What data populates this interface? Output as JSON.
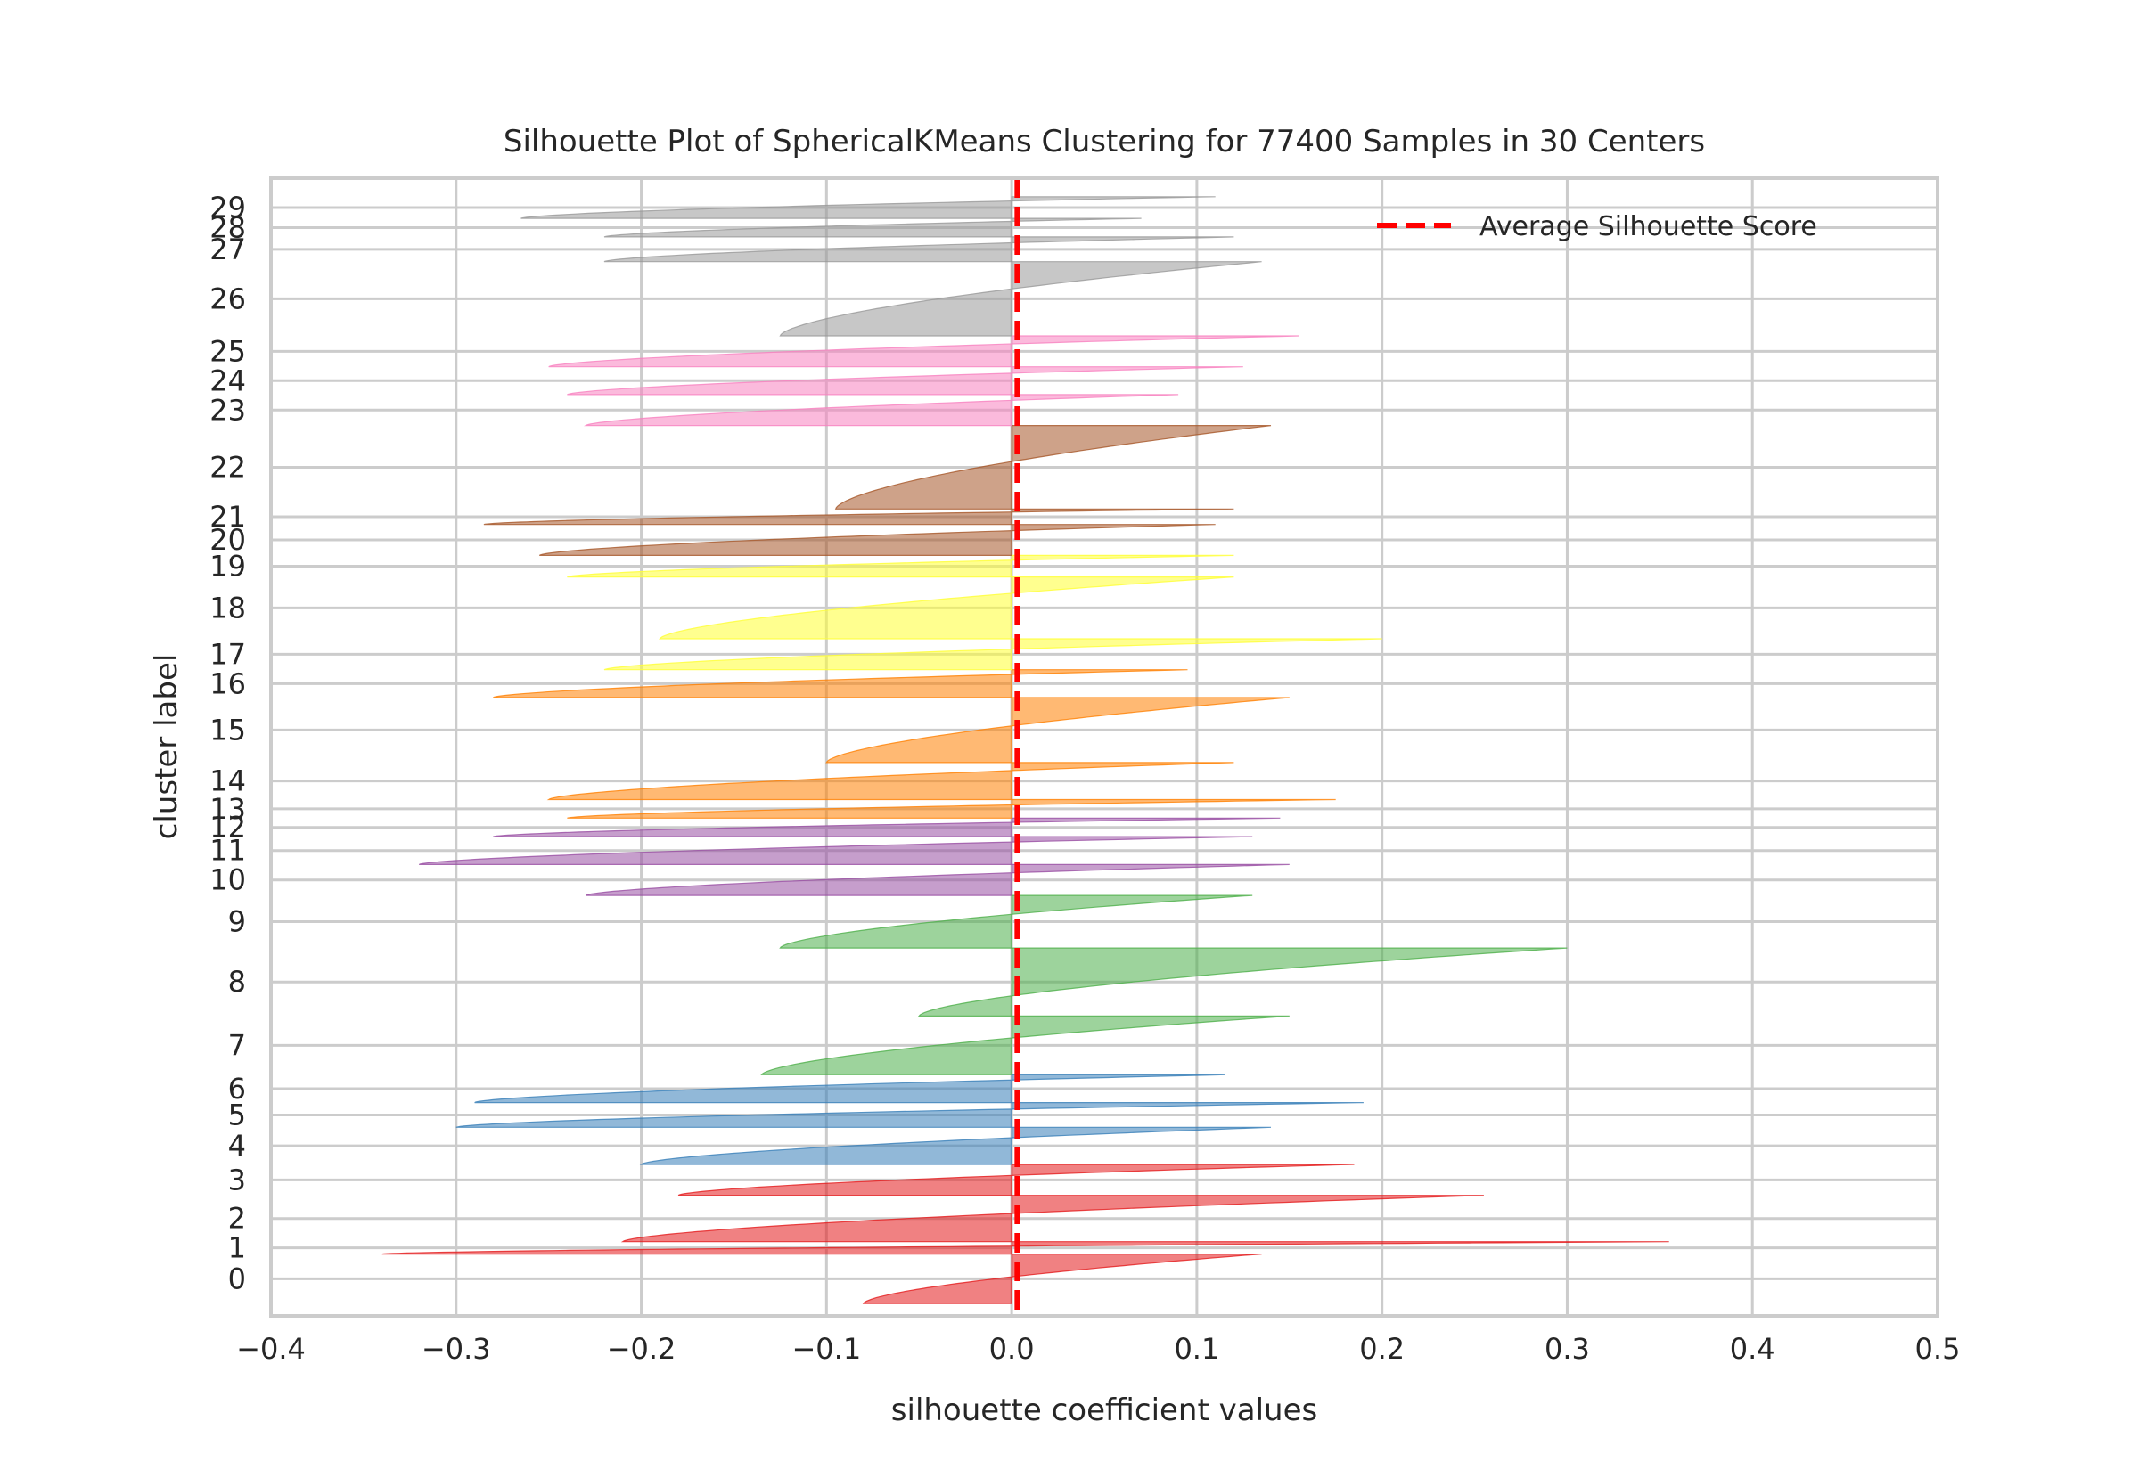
{
  "chart_data": {
    "type": "silhouette",
    "title": "Silhouette Plot of SphericalKMeans Clustering for 77400 Samples in 30 Centers",
    "xlabel": "silhouette coefficient values",
    "ylabel": "cluster label",
    "xlim": [
      -0.4,
      0.5
    ],
    "xticks": [
      -0.4,
      -0.3,
      -0.2,
      -0.1,
      0.0,
      0.1,
      0.2,
      0.3,
      0.4,
      0.5
    ],
    "xtick_labels": [
      "−0.4",
      "−0.3",
      "−0.2",
      "−0.1",
      "0.0",
      "0.1",
      "0.2",
      "0.3",
      "0.4",
      "0.5"
    ],
    "grid": true,
    "legend": {
      "label": "Average Silhouette Score",
      "placement": "top-right"
    },
    "average_silhouette_score": 0.003,
    "average_color": "#ff0000",
    "clusters": [
      {
        "label": "0",
        "color": "#e41a1c",
        "min": -0.08,
        "max": 0.135,
        "bottom": 0,
        "top": 1600
      },
      {
        "label": "1",
        "color": "#e41a1c",
        "min": -0.34,
        "max": 0.355,
        "bottom": 1600,
        "top": 2000
      },
      {
        "label": "2",
        "color": "#e41a1c",
        "min": -0.21,
        "max": 0.255,
        "bottom": 2000,
        "top": 3500
      },
      {
        "label": "3",
        "color": "#e41a1c",
        "min": -0.18,
        "max": 0.185,
        "bottom": 3500,
        "top": 4500
      },
      {
        "label": "4",
        "color": "#377eb8",
        "min": -0.2,
        "max": 0.14,
        "bottom": 4500,
        "top": 5700
      },
      {
        "label": "5",
        "color": "#377eb8",
        "min": -0.3,
        "max": 0.19,
        "bottom": 5700,
        "top": 6500
      },
      {
        "label": "6",
        "color": "#377eb8",
        "min": -0.29,
        "max": 0.115,
        "bottom": 6500,
        "top": 7400
      },
      {
        "label": "7",
        "color": "#4daf4a",
        "min": -0.135,
        "max": 0.15,
        "bottom": 7400,
        "top": 9300
      },
      {
        "label": "8",
        "color": "#4daf4a",
        "min": -0.05,
        "max": 0.3,
        "bottom": 9300,
        "top": 11500
      },
      {
        "label": "9",
        "color": "#4daf4a",
        "min": -0.125,
        "max": 0.13,
        "bottom": 11500,
        "top": 13200
      },
      {
        "label": "10",
        "color": "#984ea3",
        "min": -0.23,
        "max": 0.15,
        "bottom": 13200,
        "top": 14200
      },
      {
        "label": "11",
        "color": "#984ea3",
        "min": -0.32,
        "max": 0.13,
        "bottom": 14200,
        "top": 15100
      },
      {
        "label": "12",
        "color": "#984ea3",
        "min": -0.28,
        "max": 0.145,
        "bottom": 15100,
        "top": 15700
      },
      {
        "label": "13",
        "color": "#ff7f00",
        "min": -0.24,
        "max": 0.175,
        "bottom": 15700,
        "top": 16300
      },
      {
        "label": "14",
        "color": "#ff7f00",
        "min": -0.25,
        "max": 0.12,
        "bottom": 16300,
        "top": 17500
      },
      {
        "label": "15",
        "color": "#ff7f00",
        "min": -0.1,
        "max": 0.15,
        "bottom": 17500,
        "top": 19600
      },
      {
        "label": "16",
        "color": "#ff7f00",
        "min": -0.28,
        "max": 0.095,
        "bottom": 19600,
        "top": 20500
      },
      {
        "label": "17",
        "color": "#ffff33",
        "min": -0.22,
        "max": 0.2,
        "bottom": 20500,
        "top": 21500
      },
      {
        "label": "18",
        "color": "#ffff33",
        "min": -0.19,
        "max": 0.12,
        "bottom": 21500,
        "top": 23500
      },
      {
        "label": "19",
        "color": "#ffff33",
        "min": -0.24,
        "max": 0.12,
        "bottom": 23500,
        "top": 24200
      },
      {
        "label": "20",
        "color": "#a65628",
        "min": -0.255,
        "max": 0.11,
        "bottom": 24200,
        "top": 25200
      },
      {
        "label": "21",
        "color": "#a65628",
        "min": -0.285,
        "max": 0.12,
        "bottom": 25200,
        "top": 25700
      },
      {
        "label": "22",
        "color": "#a65628",
        "min": -0.095,
        "max": 0.14,
        "bottom": 25700,
        "top": 28400
      },
      {
        "label": "23",
        "color": "#f781bf",
        "min": -0.23,
        "max": 0.09,
        "bottom": 28400,
        "top": 29400
      },
      {
        "label": "24",
        "color": "#f781bf",
        "min": -0.24,
        "max": 0.125,
        "bottom": 29400,
        "top": 30300
      },
      {
        "label": "25",
        "color": "#f781bf",
        "min": -0.25,
        "max": 0.155,
        "bottom": 30300,
        "top": 31300
      },
      {
        "label": "26",
        "color": "#999999",
        "min": -0.125,
        "max": 0.135,
        "bottom": 31300,
        "top": 33700
      },
      {
        "label": "27",
        "color": "#999999",
        "min": -0.22,
        "max": 0.12,
        "bottom": 33700,
        "top": 34500
      },
      {
        "label": "28",
        "color": "#999999",
        "min": -0.22,
        "max": 0.07,
        "bottom": 34500,
        "top": 35100
      },
      {
        "label": "29",
        "color": "#999999",
        "min": -0.265,
        "max": 0.11,
        "bottom": 35100,
        "top": 35800
      }
    ]
  }
}
